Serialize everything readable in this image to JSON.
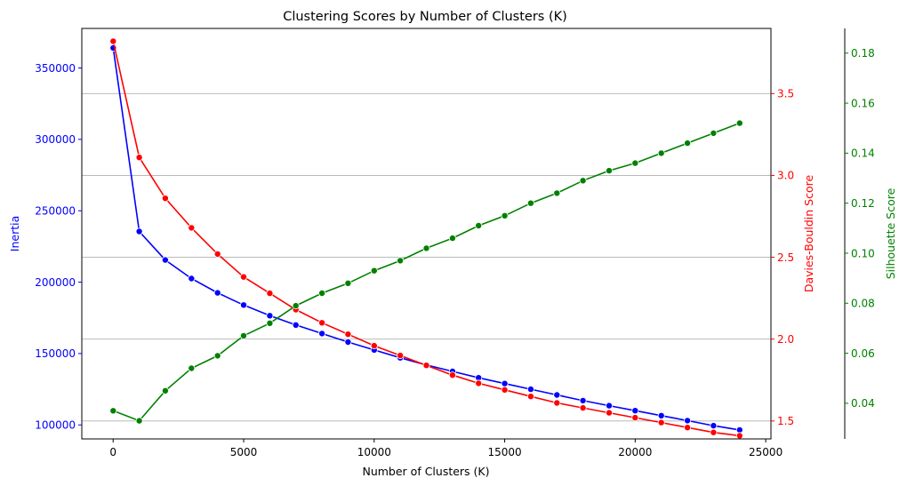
{
  "chart_data": {
    "type": "line",
    "title": "Clustering Scores by Number of Clusters (K)",
    "xlabel": "Number of Clusters (K)",
    "xlim": [
      -1200,
      25200
    ],
    "x_ticks": [
      0,
      5000,
      10000,
      15000,
      20000,
      25000
    ],
    "x": [
      2,
      1000,
      2000,
      3000,
      4000,
      5000,
      6000,
      7000,
      8000,
      9000,
      10000,
      11000,
      12000,
      13000,
      14000,
      15000,
      16000,
      17000,
      18000,
      19000,
      20000,
      21000,
      22000,
      23000,
      24000
    ],
    "grid": "horizontal (right axis)",
    "axes": [
      {
        "name": "inertia",
        "label": "Inertia",
        "color": "#0000ff",
        "side": "left",
        "ylim": [
          90200,
          377700
        ],
        "ticks": [
          100000,
          150000,
          200000,
          250000,
          300000,
          350000
        ],
        "tick_labels": [
          "100000",
          "150000",
          "200000",
          "250000",
          "300000",
          "350000"
        ]
      },
      {
        "name": "davies_bouldin",
        "label": "Davies-Bouldin Score",
        "color": "#ff0000",
        "side": "right",
        "ylim": [
          1.3904,
          3.8979
        ],
        "ticks": [
          1.5,
          2.0,
          2.5,
          3.0,
          3.5
        ],
        "tick_labels": [
          "1.5",
          "2.0",
          "2.5",
          "3.0",
          "3.5"
        ]
      },
      {
        "name": "silhouette",
        "label": "Silhouette Score",
        "color": "#008000",
        "side": "right-outer",
        "ylim": [
          0.02575,
          0.18987
        ],
        "ticks": [
          0.04,
          0.06,
          0.08,
          0.1,
          0.12,
          0.14,
          0.16,
          0.18
        ],
        "tick_labels": [
          "0.04",
          "0.06",
          "0.08",
          "0.10",
          "0.12",
          "0.14",
          "0.16",
          "0.18"
        ]
      }
    ],
    "series": [
      {
        "axis": "inertia",
        "color": "#0000ff",
        "values": [
          364000,
          235500,
          215500,
          202500,
          192500,
          184000,
          176500,
          170000,
          164000,
          158000,
          152500,
          147000,
          142000,
          137500,
          133000,
          129000,
          125000,
          121000,
          117000,
          113500,
          110000,
          106500,
          103000,
          99500,
          96500
        ]
      },
      {
        "axis": "davies_bouldin",
        "color": "#ff0000",
        "values": [
          3.82,
          3.11,
          2.86,
          2.68,
          2.52,
          2.38,
          2.28,
          2.18,
          2.1,
          2.03,
          1.96,
          1.9,
          1.84,
          1.78,
          1.73,
          1.69,
          1.65,
          1.61,
          1.58,
          1.55,
          1.52,
          1.49,
          1.46,
          1.43,
          1.41
        ]
      },
      {
        "axis": "silhouette",
        "color": "#008000",
        "values": [
          0.037,
          0.033,
          0.045,
          0.054,
          0.059,
          0.067,
          0.072,
          0.079,
          0.084,
          0.088,
          0.093,
          0.097,
          0.102,
          0.106,
          0.111,
          0.115,
          0.12,
          0.124,
          0.129,
          0.133,
          0.136,
          0.14,
          0.144,
          0.148,
          0.152
        ]
      }
    ]
  }
}
